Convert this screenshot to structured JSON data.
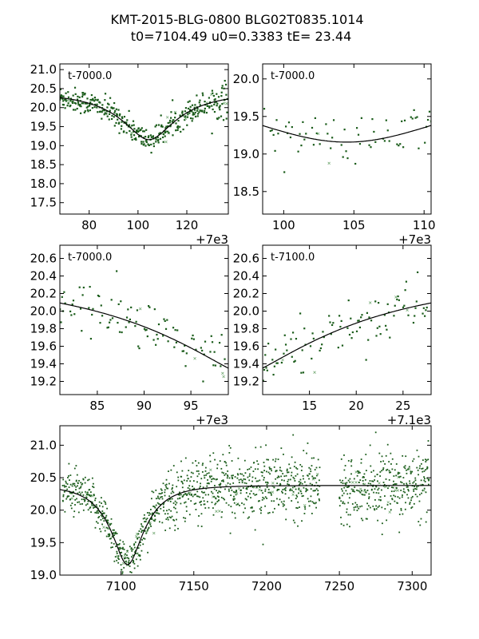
{
  "figure": {
    "title_line1": "KMT-2015-BLG-0800 BLG02T0835.1014",
    "title_line2": "t0=7104.49 u0=0.3383 tE=  23.44",
    "params": {
      "t0": 7104.49,
      "u0": 0.3383,
      "tE": 23.44
    }
  },
  "chart_data": [
    {
      "type": "scatter",
      "panel": "top-left",
      "annotation": "t-7000.0",
      "offset_label": "+7e3",
      "xlim": [
        7068,
        7137
      ],
      "ylim": [
        21.15,
        17.2
      ],
      "y_inverted": true,
      "xticks": [
        80,
        100,
        120
      ],
      "yticks": [
        "17.5",
        "18.0",
        "18.5",
        "19.0",
        "19.5",
        "20.0",
        "20.5",
        "21.0"
      ],
      "point_color": "#1a5c1a",
      "model_color": "#000000"
    },
    {
      "type": "scatter",
      "panel": "top-right",
      "annotation": "t-7000.0",
      "offset_label": "+7e3",
      "xlim": [
        7098.5,
        7110.5
      ],
      "ylim": [
        20.2,
        18.2
      ],
      "y_inverted": true,
      "xticks": [
        100,
        105,
        110
      ],
      "yticks": [
        "18.5",
        "19.0",
        "19.5",
        "20.0"
      ],
      "point_color": "#1a5c1a",
      "model_color": "#000000"
    },
    {
      "type": "scatter",
      "panel": "middle-left",
      "annotation": "t-7000.0",
      "offset_label": "+7e3",
      "xlim": [
        7081,
        7099
      ],
      "ylim": [
        20.75,
        19.05
      ],
      "y_inverted": true,
      "xticks": [
        85,
        90,
        95
      ],
      "yticks": [
        "19.2",
        "19.4",
        "19.6",
        "19.8",
        "20.0",
        "20.2",
        "20.4",
        "20.6"
      ],
      "point_color": "#1a5c1a",
      "model_color": "#000000"
    },
    {
      "type": "scatter",
      "panel": "middle-right",
      "annotation": "t-7100.0",
      "offset_label": "+7.1e3",
      "xlim": [
        7110,
        7128
      ],
      "ylim": [
        20.75,
        19.05
      ],
      "y_inverted": true,
      "xticks": [
        15,
        20,
        25
      ],
      "yticks": [
        "19.2",
        "19.4",
        "19.6",
        "19.8",
        "20.0",
        "20.2",
        "20.4",
        "20.6"
      ],
      "point_color": "#1a5c1a",
      "model_color": "#000000"
    },
    {
      "type": "scatter",
      "panel": "bottom",
      "xlim": [
        7058,
        7313
      ],
      "ylim": [
        21.3,
        19.0
      ],
      "y_inverted": true,
      "xticks": [
        7100,
        7150,
        7200,
        7250,
        7300
      ],
      "yticks": [
        "19.0",
        "19.5",
        "20.0",
        "20.5",
        "21.0"
      ],
      "point_color": "#1a5c1a",
      "model_color": "#000000"
    }
  ]
}
